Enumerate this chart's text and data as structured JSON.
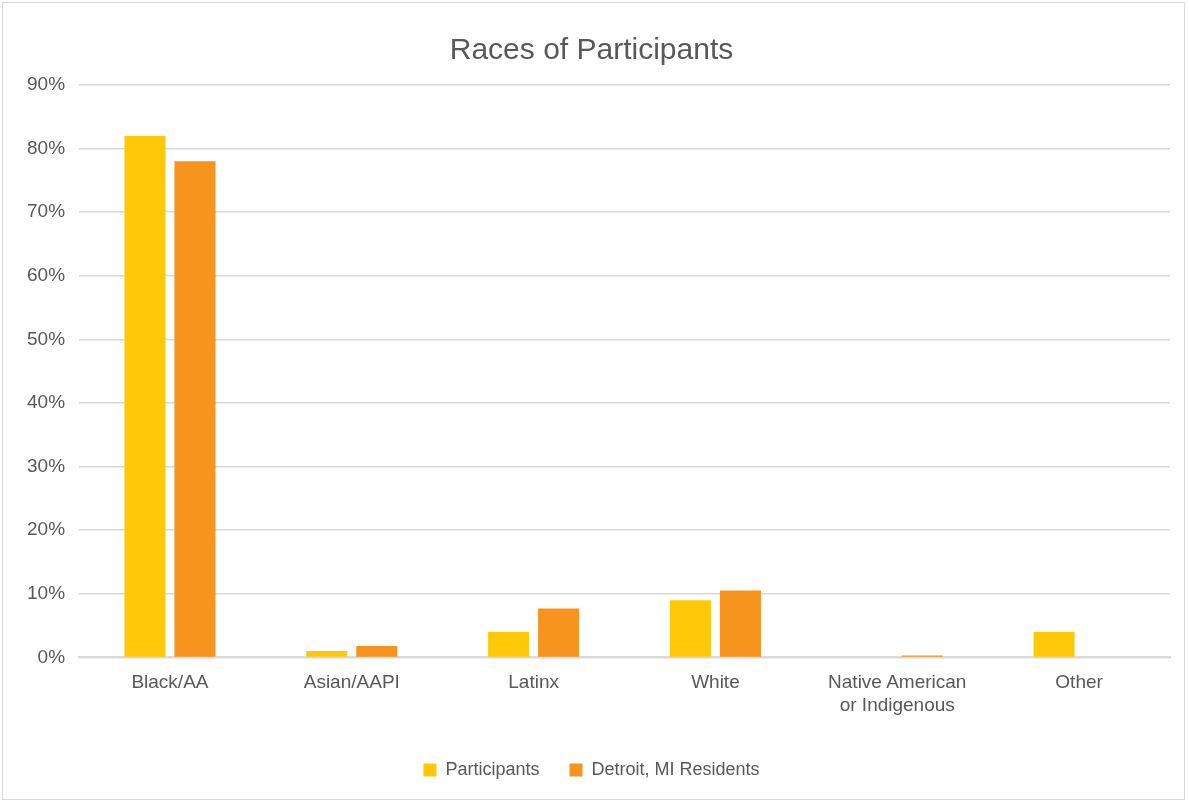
{
  "chart_data": {
    "type": "bar",
    "title": "Races of Participants",
    "categories": [
      "Black/AA",
      "Asian/AAPI",
      "Latinx",
      "White",
      "Native American or Indigenous",
      "Other"
    ],
    "series": [
      {
        "name": "Participants",
        "color": "#ffc90a",
        "values": [
          82,
          1,
          4,
          9,
          0,
          4
        ]
      },
      {
        "name": "Detroit, MI Residents",
        "color": "#f7941d",
        "values": [
          78,
          1.8,
          7.7,
          10.5,
          0.3,
          0
        ]
      }
    ],
    "ylim": [
      0,
      90
    ],
    "yticks": [
      {
        "value": 0,
        "label": "0%"
      },
      {
        "value": 10,
        "label": "10%"
      },
      {
        "value": 20,
        "label": "20%"
      },
      {
        "value": 30,
        "label": "30%"
      },
      {
        "value": 40,
        "label": "40%"
      },
      {
        "value": 50,
        "label": "50%"
      },
      {
        "value": 60,
        "label": "60%"
      },
      {
        "value": 70,
        "label": "70%"
      },
      {
        "value": 80,
        "label": "80%"
      },
      {
        "value": 90,
        "label": "90%"
      }
    ],
    "grid": "y",
    "legend": "bottom"
  }
}
